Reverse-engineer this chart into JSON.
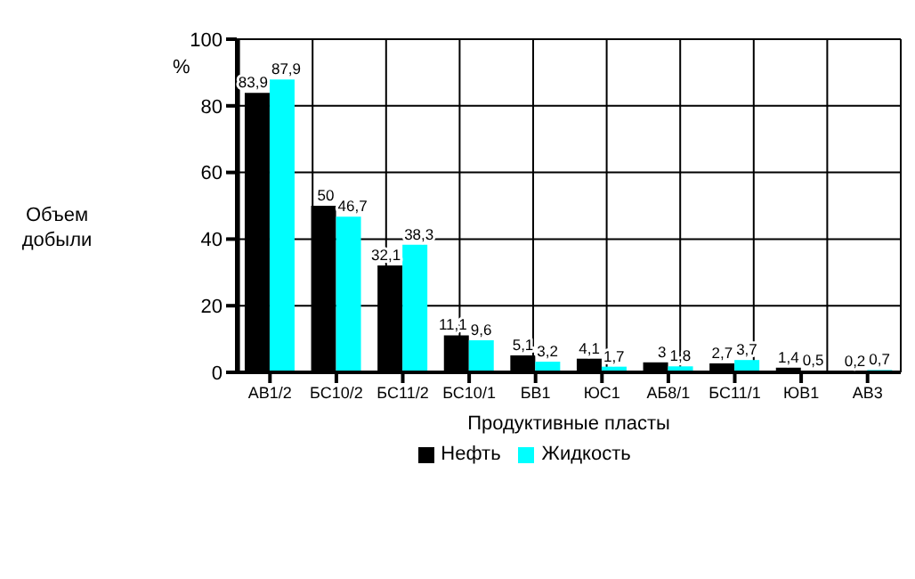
{
  "chart_data": {
    "type": "bar",
    "categories": [
      "АВ1/2",
      "БС10/2",
      "БС11/2",
      "БС10/1",
      "БВ1",
      "ЮС1",
      "АБ8/1",
      "БС11/1",
      "ЮВ1",
      "АВ3"
    ],
    "series": [
      {
        "name": "Нефть",
        "color": "#000000",
        "values": [
          83.9,
          50,
          32.1,
          11.1,
          5.1,
          4.1,
          3,
          2.7,
          1.4,
          0.2
        ],
        "value_labels": [
          "83,9",
          "50",
          "32,1",
          "11,1",
          "5,1",
          "4,1",
          "3",
          "2,7",
          "1,4",
          "0,2"
        ]
      },
      {
        "name": "Жидкость",
        "color": "#00ffff",
        "values": [
          87.9,
          46.7,
          38.3,
          9.6,
          3.2,
          1.7,
          1.8,
          3.7,
          0.5,
          0.7
        ],
        "value_labels": [
          "87,9",
          "46,7",
          "38,3",
          "9,6",
          "3,2",
          "1,7",
          "1,8",
          "3,7",
          "0,5",
          "0,7"
        ]
      }
    ],
    "ylabel": "Объем добыли",
    "xlabel": "Продуктивные пласты",
    "annotations": [
      "%"
    ],
    "ylim": [
      0,
      100
    ],
    "yticks": [
      0,
      20,
      40,
      60,
      80,
      100
    ],
    "grid": true,
    "legend": "bottom"
  }
}
